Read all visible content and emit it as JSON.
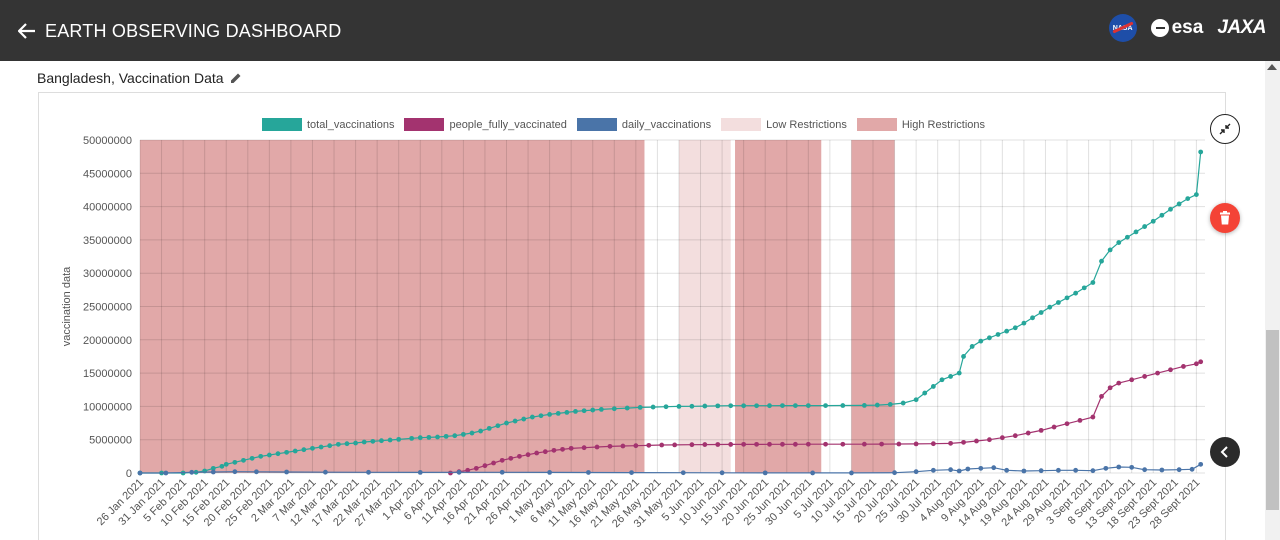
{
  "header": {
    "title": "EARTH OBSERVING DASHBOARD",
    "logos": {
      "nasa": "NASA",
      "esa": "esa",
      "jaxa": "JAXA"
    }
  },
  "indicator": {
    "title": "Bangladesh, Vaccination Data"
  },
  "colors": {
    "total": "#26a69a",
    "fully": "#a3336f",
    "daily": "#4a74a8",
    "low": "#f3dede",
    "high": "#e1a8a8"
  },
  "chart_data": {
    "type": "scatter",
    "title": "",
    "xlabel": "",
    "ylabel": "vaccination data",
    "ylim": [
      0,
      50000000
    ],
    "y_ticks": [
      "50000000",
      "45000000",
      "40000000",
      "35000000",
      "30000000",
      "25000000",
      "20000000",
      "15000000",
      "10000000",
      "5000000",
      "0"
    ],
    "x_ticks": [
      "26 Jan 2021",
      "31 Jan 2021",
      "5 Feb 2021",
      "10 Feb 2021",
      "15 Feb 2021",
      "20 Feb 2021",
      "25 Feb 2021",
      "2 Mar 2021",
      "7 Mar 2021",
      "12 Mar 2021",
      "17 Mar 2021",
      "22 Mar 2021",
      "27 Mar 2021",
      "1 Apr 2021",
      "6 Apr 2021",
      "11 Apr 2021",
      "16 Apr 2021",
      "21 Apr 2021",
      "26 Apr 2021",
      "1 May 2021",
      "6 May 2021",
      "11 May 2021",
      "16 May 2021",
      "21 May 2021",
      "26 May 2021",
      "31 May 2021",
      "5 Jun 2021",
      "10 Jun 2021",
      "15 Jun 2021",
      "20 Jun 2021",
      "25 Jun 2021",
      "30 Jun 2021",
      "5 Jul 2021",
      "10 Jul 2021",
      "15 Jul 2021",
      "20 Jul 2021",
      "25 Jul 2021",
      "30 Jul 2021",
      "4 Aug 2021",
      "9 Aug 2021",
      "14 Aug 2021",
      "19 Aug 2021",
      "24 Aug 2021",
      "29 Aug 2021",
      "3 Sept 2021",
      "8 Sept 2021",
      "13 Sept 2021",
      "18 Sept 2021",
      "23 Sept 2021",
      "28 Sept 2021"
    ],
    "grid": true,
    "legend": "top-center",
    "legend_entries": [
      "total_vaccinations",
      "people_fully_vaccinated",
      "daily_vaccinations",
      "Low Restrictions",
      "High Restrictions"
    ],
    "restrictions": [
      {
        "level": "High Restrictions",
        "start": "26 Jan 2021",
        "end": "23 May 2021"
      },
      {
        "level": "Low Restrictions",
        "start": "31 May 2021",
        "end": "12 Jun 2021"
      },
      {
        "level": "High Restrictions",
        "start": "13 Jun 2021",
        "end": "3 Jul 2021"
      },
      {
        "level": "High Restrictions",
        "start": "10 Jul 2021",
        "end": "20 Jul 2021"
      }
    ],
    "series": [
      {
        "name": "total_vaccinations",
        "points": [
          [
            "26 Jan 2021",
            0
          ],
          [
            "31 Jan 2021",
            0
          ],
          [
            "5 Feb 2021",
            0
          ],
          [
            "8 Feb 2021",
            100000
          ],
          [
            "10 Feb 2021",
            300000
          ],
          [
            "12 Feb 2021",
            700000
          ],
          [
            "14 Feb 2021",
            1000000
          ],
          [
            "15 Feb 2021",
            1300000
          ],
          [
            "17 Feb 2021",
            1600000
          ],
          [
            "19 Feb 2021",
            1900000
          ],
          [
            "21 Feb 2021",
            2200000
          ],
          [
            "23 Feb 2021",
            2500000
          ],
          [
            "25 Feb 2021",
            2700000
          ],
          [
            "27 Feb 2021",
            2900000
          ],
          [
            "1 Mar 2021",
            3100000
          ],
          [
            "3 Mar 2021",
            3300000
          ],
          [
            "5 Mar 2021",
            3500000
          ],
          [
            "7 Mar 2021",
            3700000
          ],
          [
            "9 Mar 2021",
            3900000
          ],
          [
            "11 Mar 2021",
            4100000
          ],
          [
            "13 Mar 2021",
            4300000
          ],
          [
            "15 Mar 2021",
            4400000
          ],
          [
            "17 Mar 2021",
            4500000
          ],
          [
            "19 Mar 2021",
            4650000
          ],
          [
            "21 Mar 2021",
            4750000
          ],
          [
            "23 Mar 2021",
            4850000
          ],
          [
            "25 Mar 2021",
            4950000
          ],
          [
            "27 Mar 2021",
            5050000
          ],
          [
            "30 Mar 2021",
            5200000
          ],
          [
            "1 Apr 2021",
            5300000
          ],
          [
            "3 Apr 2021",
            5350000
          ],
          [
            "5 Apr 2021",
            5400000
          ],
          [
            "7 Apr 2021",
            5500000
          ],
          [
            "9 Apr 2021",
            5600000
          ],
          [
            "11 Apr 2021",
            5800000
          ],
          [
            "13 Apr 2021",
            6000000
          ],
          [
            "15 Apr 2021",
            6300000
          ],
          [
            "17 Apr 2021",
            6700000
          ],
          [
            "19 Apr 2021",
            7100000
          ],
          [
            "21 Apr 2021",
            7500000
          ],
          [
            "23 Apr 2021",
            7800000
          ],
          [
            "25 Apr 2021",
            8100000
          ],
          [
            "27 Apr 2021",
            8400000
          ],
          [
            "29 Apr 2021",
            8600000
          ],
          [
            "1 May 2021",
            8800000
          ],
          [
            "3 May 2021",
            8950000
          ],
          [
            "5 May 2021",
            9100000
          ],
          [
            "7 May 2021",
            9250000
          ],
          [
            "9 May 2021",
            9350000
          ],
          [
            "11 May 2021",
            9450000
          ],
          [
            "13 May 2021",
            9550000
          ],
          [
            "16 May 2021",
            9650000
          ],
          [
            "19 May 2021",
            9750000
          ],
          [
            "22 May 2021",
            9850000
          ],
          [
            "25 May 2021",
            9900000
          ],
          [
            "28 May 2021",
            9950000
          ],
          [
            "31 May 2021",
            10000000
          ],
          [
            "3 Jun 2021",
            10020000
          ],
          [
            "6 Jun 2021",
            10050000
          ],
          [
            "9 Jun 2021",
            10080000
          ],
          [
            "12 Jun 2021",
            10100000
          ],
          [
            "15 Jun 2021",
            10100000
          ],
          [
            "18 Jun 2021",
            10100000
          ],
          [
            "21 Jun 2021",
            10110000
          ],
          [
            "24 Jun 2021",
            10120000
          ],
          [
            "27 Jun 2021",
            10120000
          ],
          [
            "30 Jun 2021",
            10120000
          ],
          [
            "4 Jul 2021",
            10120000
          ],
          [
            "8 Jul 2021",
            10130000
          ],
          [
            "13 Jul 2021",
            10150000
          ],
          [
            "16 Jul 2021",
            10200000
          ],
          [
            "19 Jul 2021",
            10300000
          ],
          [
            "22 Jul 2021",
            10500000
          ],
          [
            "25 Jul 2021",
            11000000
          ],
          [
            "27 Jul 2021",
            12000000
          ],
          [
            "29 Jul 2021",
            13000000
          ],
          [
            "31 Jul 2021",
            14000000
          ],
          [
            "2 Aug 2021",
            14500000
          ],
          [
            "4 Aug 2021",
            15000000
          ],
          [
            "5 Aug 2021",
            17500000
          ],
          [
            "7 Aug 2021",
            19000000
          ],
          [
            "9 Aug 2021",
            19800000
          ],
          [
            "11 Aug 2021",
            20300000
          ],
          [
            "13 Aug 2021",
            20800000
          ],
          [
            "15 Aug 2021",
            21300000
          ],
          [
            "17 Aug 2021",
            21800000
          ],
          [
            "19 Aug 2021",
            22500000
          ],
          [
            "21 Aug 2021",
            23300000
          ],
          [
            "23 Aug 2021",
            24100000
          ],
          [
            "25 Aug 2021",
            24900000
          ],
          [
            "27 Aug 2021",
            25600000
          ],
          [
            "29 Aug 2021",
            26300000
          ],
          [
            "31 Aug 2021",
            27000000
          ],
          [
            "2 Sept 2021",
            27800000
          ],
          [
            "4 Sept 2021",
            28600000
          ],
          [
            "6 Sept 2021",
            31800000
          ],
          [
            "8 Sept 2021",
            33500000
          ],
          [
            "10 Sept 2021",
            34600000
          ],
          [
            "12 Sept 2021",
            35400000
          ],
          [
            "14 Sept 2021",
            36200000
          ],
          [
            "16 Sept 2021",
            37000000
          ],
          [
            "18 Sept 2021",
            37800000
          ],
          [
            "20 Sept 2021",
            38700000
          ],
          [
            "22 Sept 2021",
            39600000
          ],
          [
            "24 Sept 2021",
            40400000
          ],
          [
            "26 Sept 2021",
            41200000
          ],
          [
            "28 Sept 2021",
            41800000
          ],
          [
            "29 Sept 2021",
            48200000
          ]
        ]
      },
      {
        "name": "people_fully_vaccinated",
        "points": [
          [
            "8 Apr 2021",
            0
          ],
          [
            "10 Apr 2021",
            200000
          ],
          [
            "12 Apr 2021",
            400000
          ],
          [
            "14 Apr 2021",
            700000
          ],
          [
            "16 Apr 2021",
            1100000
          ],
          [
            "18 Apr 2021",
            1500000
          ],
          [
            "20 Apr 2021",
            1900000
          ],
          [
            "22 Apr 2021",
            2200000
          ],
          [
            "24 Apr 2021",
            2500000
          ],
          [
            "26 Apr 2021",
            2750000
          ],
          [
            "28 Apr 2021",
            3000000
          ],
          [
            "30 Apr 2021",
            3200000
          ],
          [
            "2 May 2021",
            3400000
          ],
          [
            "4 May 2021",
            3550000
          ],
          [
            "6 May 2021",
            3700000
          ],
          [
            "9 May 2021",
            3800000
          ],
          [
            "12 May 2021",
            3900000
          ],
          [
            "15 May 2021",
            4000000
          ],
          [
            "18 May 2021",
            4050000
          ],
          [
            "21 May 2021",
            4100000
          ],
          [
            "24 May 2021",
            4150000
          ],
          [
            "27 May 2021",
            4200000
          ],
          [
            "30 May 2021",
            4220000
          ],
          [
            "3 Jun 2021",
            4250000
          ],
          [
            "6 Jun 2021",
            4270000
          ],
          [
            "9 Jun 2021",
            4280000
          ],
          [
            "12 Jun 2021",
            4290000
          ],
          [
            "15 Jun 2021",
            4300000
          ],
          [
            "18 Jun 2021",
            4300000
          ],
          [
            "21 Jun 2021",
            4310000
          ],
          [
            "24 Jun 2021",
            4310000
          ],
          [
            "27 Jun 2021",
            4310000
          ],
          [
            "30 Jun 2021",
            4320000
          ],
          [
            "4 Jul 2021",
            4320000
          ],
          [
            "8 Jul 2021",
            4320000
          ],
          [
            "13 Jul 2021",
            4330000
          ],
          [
            "17 Jul 2021",
            4340000
          ],
          [
            "21 Jul 2021",
            4350000
          ],
          [
            "25 Jul 2021",
            4370000
          ],
          [
            "29 Jul 2021",
            4400000
          ],
          [
            "2 Aug 2021",
            4450000
          ],
          [
            "5 Aug 2021",
            4600000
          ],
          [
            "8 Aug 2021",
            4800000
          ],
          [
            "11 Aug 2021",
            5000000
          ],
          [
            "14 Aug 2021",
            5300000
          ],
          [
            "17 Aug 2021",
            5600000
          ],
          [
            "20 Aug 2021",
            6000000
          ],
          [
            "23 Aug 2021",
            6400000
          ],
          [
            "26 Aug 2021",
            6900000
          ],
          [
            "29 Aug 2021",
            7400000
          ],
          [
            "1 Sept 2021",
            7900000
          ],
          [
            "4 Sept 2021",
            8400000
          ],
          [
            "6 Sept 2021",
            11500000
          ],
          [
            "8 Sept 2021",
            12800000
          ],
          [
            "10 Sept 2021",
            13500000
          ],
          [
            "13 Sept 2021",
            14000000
          ],
          [
            "16 Sept 2021",
            14500000
          ],
          [
            "19 Sept 2021",
            15000000
          ],
          [
            "22 Sept 2021",
            15500000
          ],
          [
            "25 Sept 2021",
            16000000
          ],
          [
            "28 Sept 2021",
            16400000
          ],
          [
            "29 Sept 2021",
            16700000
          ]
        ]
      },
      {
        "name": "daily_vaccinations",
        "points": [
          [
            "26 Jan 2021",
            0
          ],
          [
            "1 Feb 2021",
            0
          ],
          [
            "7 Feb 2021",
            100000
          ],
          [
            "12 Feb 2021",
            150000
          ],
          [
            "17 Feb 2021",
            200000
          ],
          [
            "22 Feb 2021",
            180000
          ],
          [
            "1 Mar 2021",
            150000
          ],
          [
            "10 Mar 2021",
            120000
          ],
          [
            "20 Mar 2021",
            100000
          ],
          [
            "1 Apr 2021",
            90000
          ],
          [
            "10 Apr 2021",
            100000
          ],
          [
            "20 Apr 2021",
            110000
          ],
          [
            "1 May 2021",
            90000
          ],
          [
            "10 May 2021",
            80000
          ],
          [
            "20 May 2021",
            60000
          ],
          [
            "1 Jun 2021",
            40000
          ],
          [
            "10 Jun 2021",
            30000
          ],
          [
            "20 Jun 2021",
            20000
          ],
          [
            "1 Jul 2021",
            10000
          ],
          [
            "10 Jul 2021",
            10000
          ],
          [
            "20 Jul 2021",
            50000
          ],
          [
            "25 Jul 2021",
            200000
          ],
          [
            "29 Jul 2021",
            400000
          ],
          [
            "2 Aug 2021",
            500000
          ],
          [
            "4 Aug 2021",
            300000
          ],
          [
            "6 Aug 2021",
            600000
          ],
          [
            "9 Aug 2021",
            700000
          ],
          [
            "12 Aug 2021",
            800000
          ],
          [
            "15 Aug 2021",
            400000
          ],
          [
            "19 Aug 2021",
            300000
          ],
          [
            "23 Aug 2021",
            350000
          ],
          [
            "27 Aug 2021",
            400000
          ],
          [
            "31 Aug 2021",
            400000
          ],
          [
            "4 Sept 2021",
            350000
          ],
          [
            "7 Sept 2021",
            700000
          ],
          [
            "10 Sept 2021",
            900000
          ],
          [
            "13 Sept 2021",
            850000
          ],
          [
            "16 Sept 2021",
            500000
          ],
          [
            "20 Sept 2021",
            450000
          ],
          [
            "24 Sept 2021",
            500000
          ],
          [
            "27 Sept 2021",
            550000
          ],
          [
            "29 Sept 2021",
            1300000
          ]
        ]
      }
    ]
  }
}
